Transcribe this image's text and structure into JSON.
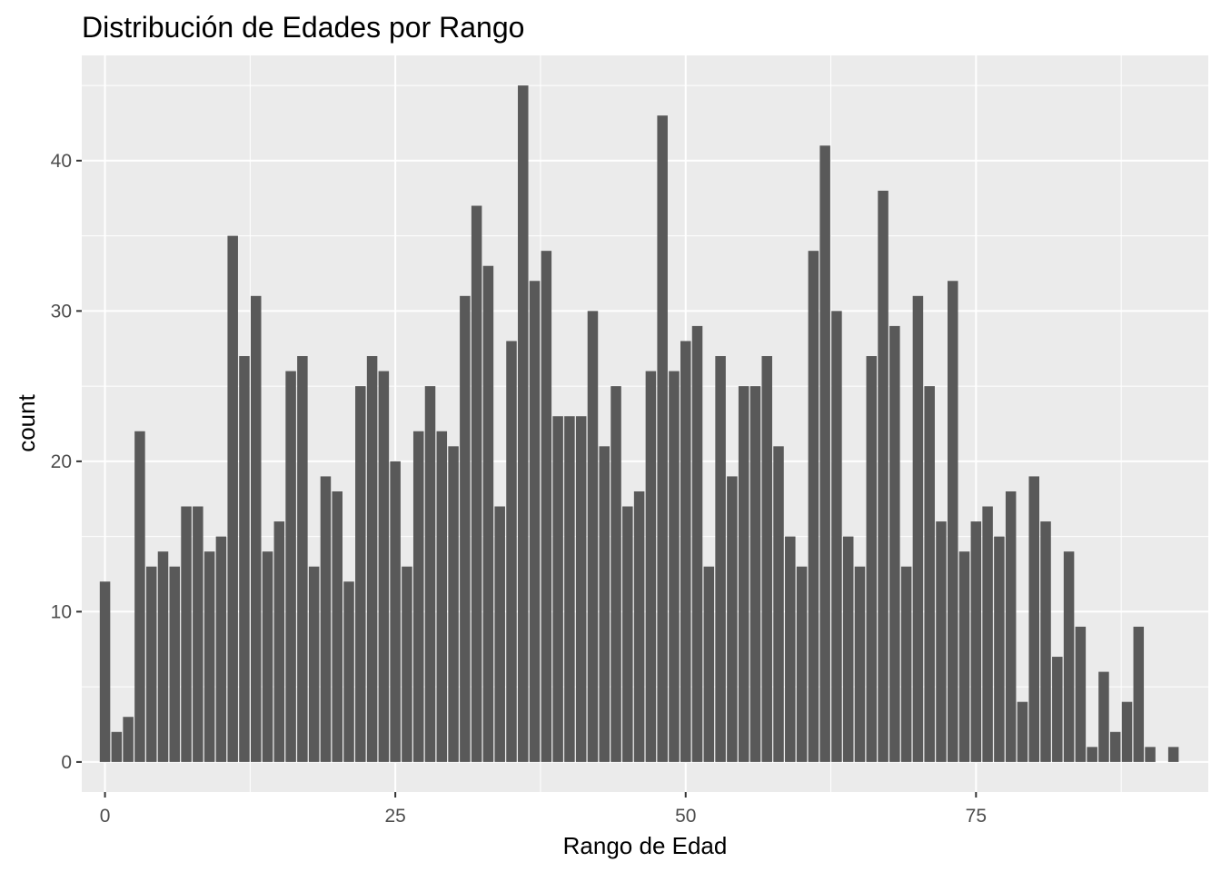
{
  "chart_data": {
    "type": "bar",
    "title": "Distribución de Edades por Rango",
    "xlabel": "Rango de Edad",
    "ylabel": "count",
    "xlim": [
      -2,
      95
    ],
    "ylim": [
      -2,
      47
    ],
    "x_ticks": [
      0,
      25,
      50,
      75
    ],
    "y_ticks": [
      0,
      10,
      20,
      30,
      40
    ],
    "x_tick_labels": [
      "0",
      "25",
      "50",
      "75"
    ],
    "y_tick_labels": [
      "0",
      "10",
      "20",
      "30",
      "40"
    ],
    "grid": true,
    "bar_color": "#595959",
    "panel_color": "#ebebeb",
    "grid_color": "#ffffff",
    "x": [
      0,
      1,
      2,
      3,
      4,
      5,
      6,
      7,
      8,
      9,
      10,
      11,
      12,
      13,
      14,
      15,
      16,
      17,
      18,
      19,
      20,
      21,
      22,
      23,
      24,
      25,
      26,
      27,
      28,
      29,
      30,
      31,
      32,
      33,
      34,
      35,
      36,
      37,
      38,
      39,
      40,
      41,
      42,
      43,
      44,
      45,
      46,
      47,
      48,
      49,
      50,
      51,
      52,
      53,
      54,
      55,
      56,
      57,
      58,
      59,
      60,
      61,
      62,
      63,
      64,
      65,
      66,
      67,
      68,
      69,
      70,
      71,
      72,
      73,
      74,
      75,
      76,
      77,
      78,
      79,
      80,
      81,
      82,
      83,
      84,
      85,
      86,
      87,
      88,
      89,
      90,
      92
    ],
    "values": [
      12,
      2,
      3,
      22,
      13,
      14,
      13,
      17,
      17,
      14,
      15,
      35,
      27,
      31,
      14,
      16,
      26,
      27,
      13,
      19,
      18,
      12,
      25,
      27,
      26,
      20,
      13,
      22,
      25,
      22,
      21,
      31,
      37,
      33,
      17,
      28,
      45,
      32,
      34,
      23,
      23,
      23,
      30,
      21,
      25,
      17,
      18,
      26,
      43,
      26,
      28,
      29,
      13,
      27,
      19,
      25,
      25,
      27,
      21,
      15,
      13,
      34,
      41,
      30,
      15,
      13,
      27,
      38,
      29,
      13,
      31,
      25,
      16,
      32,
      14,
      16,
      17,
      15,
      18,
      4,
      19,
      16,
      7,
      14,
      9,
      1,
      6,
      2,
      4,
      9,
      1,
      1
    ]
  }
}
